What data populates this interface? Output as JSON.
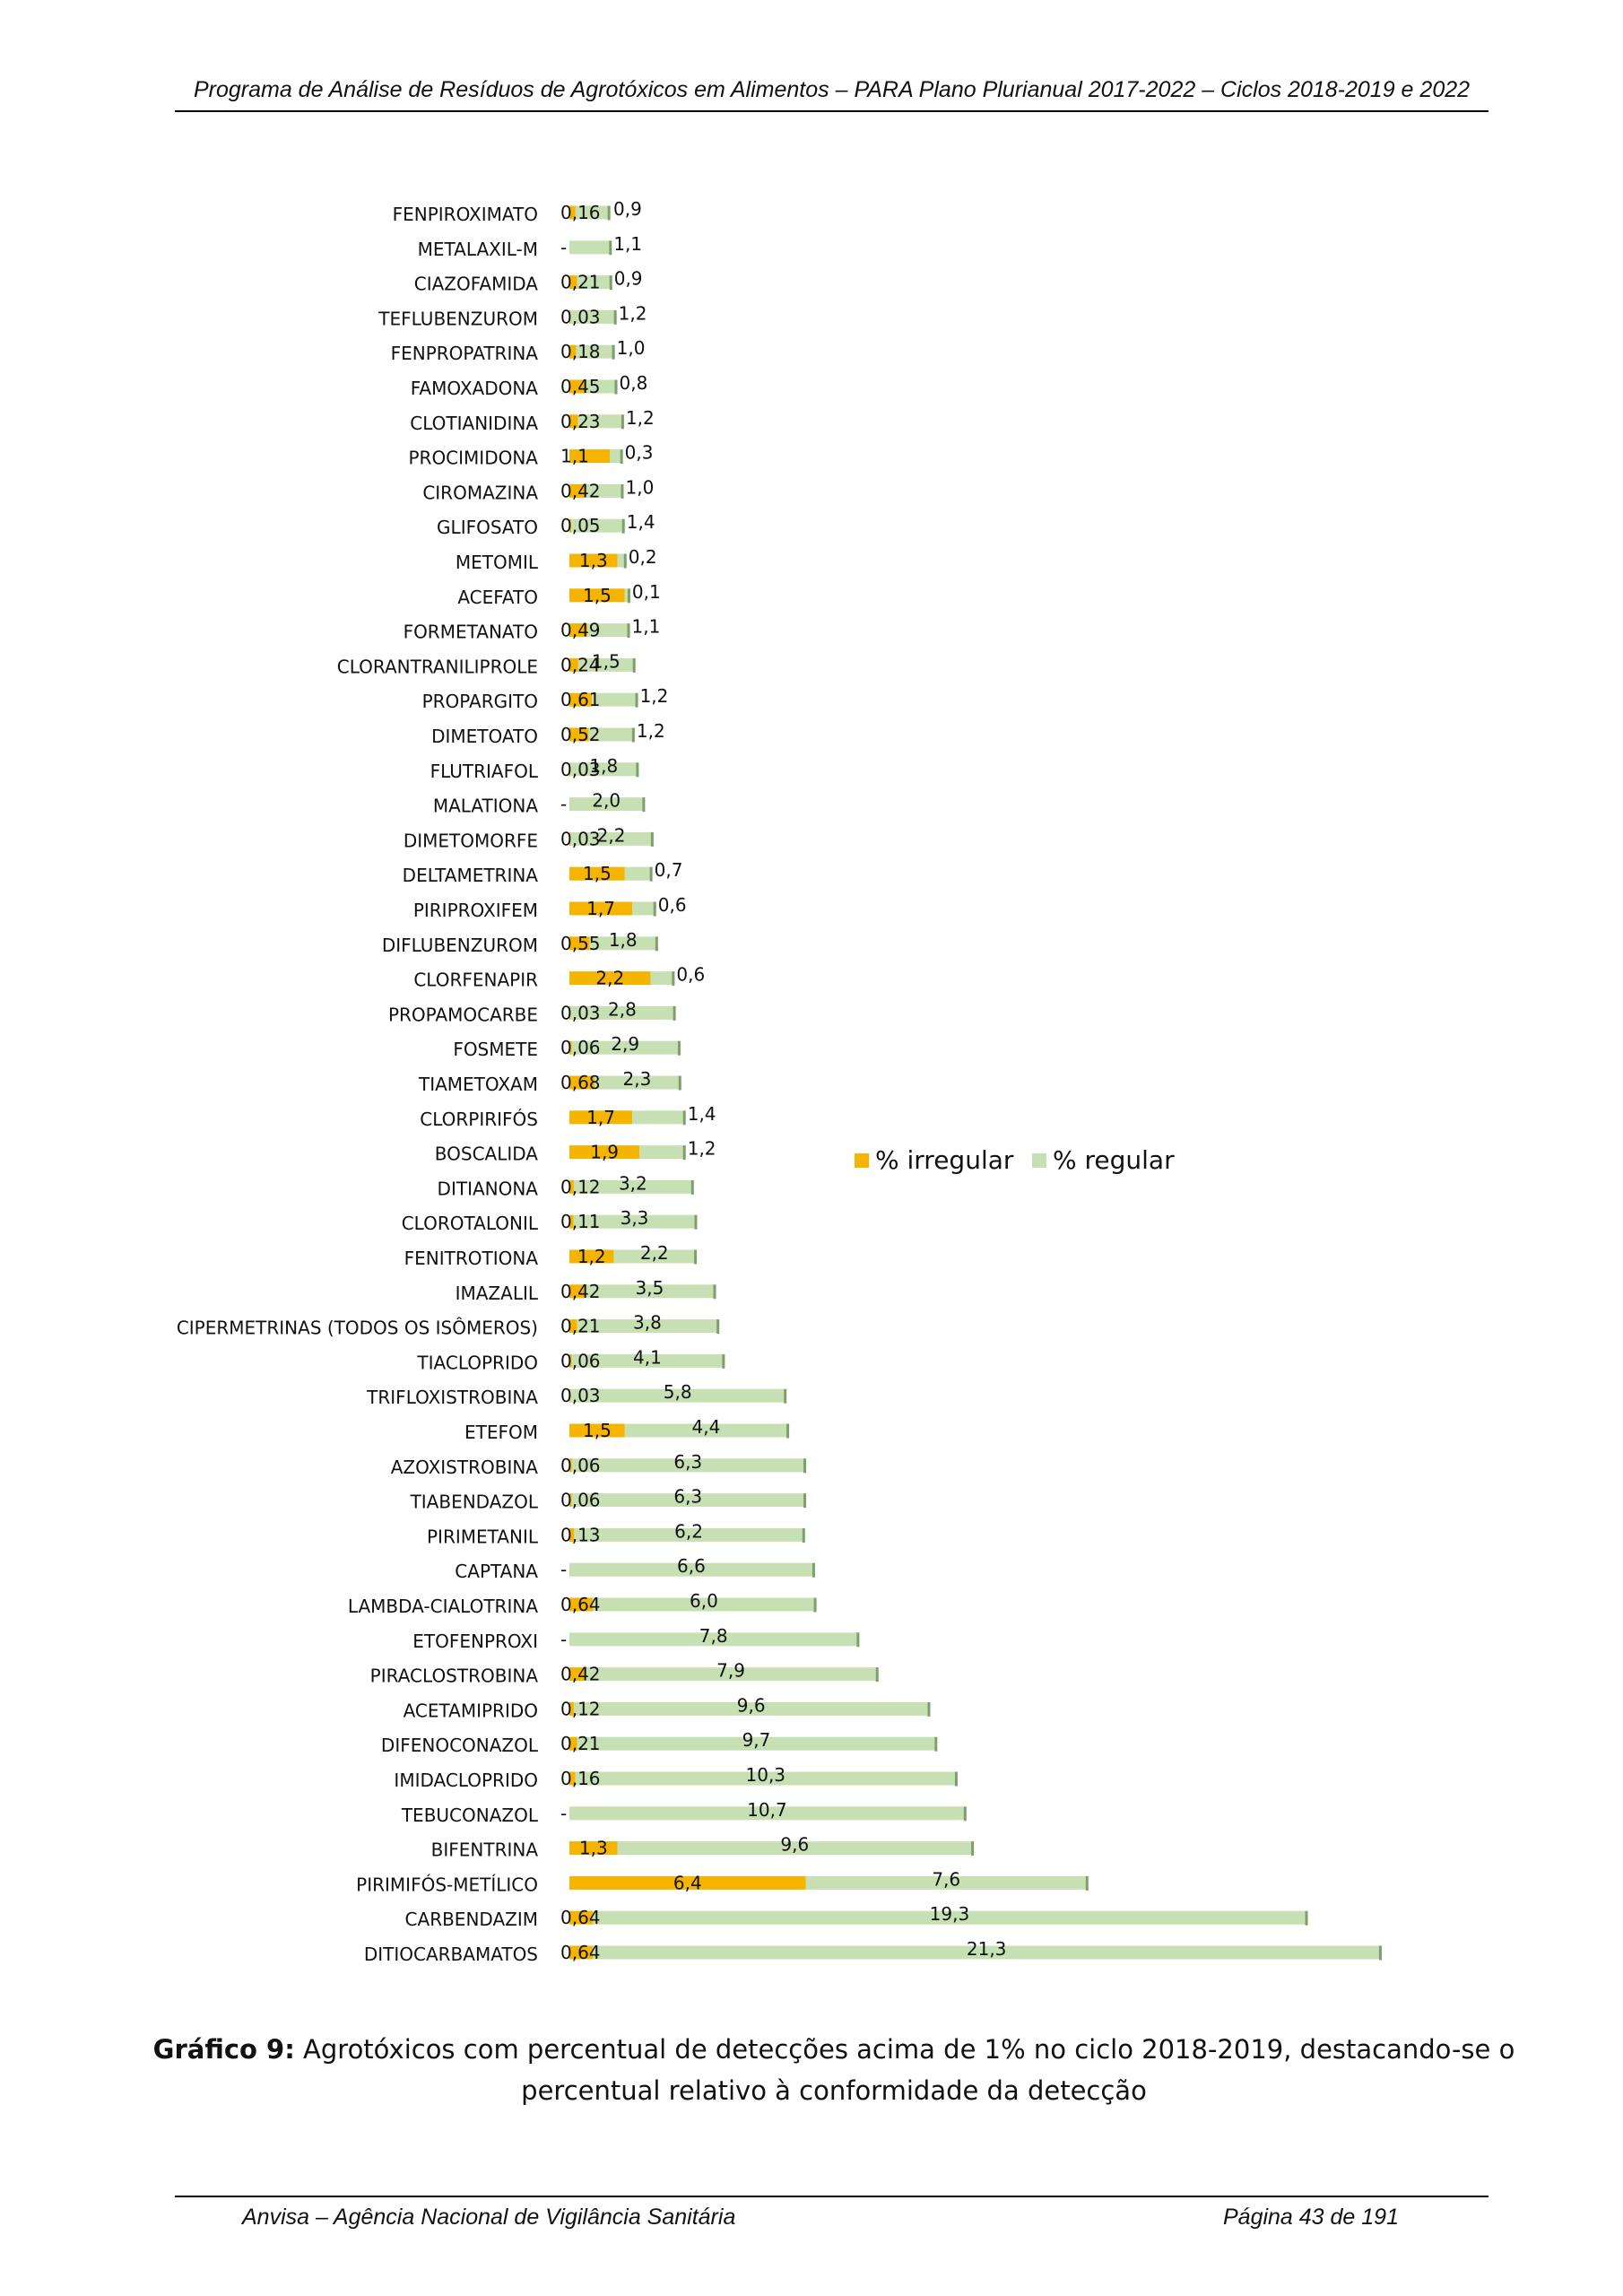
{
  "header": {
    "title": "Programa de Análise de Resíduos de Agrotóxicos em Alimentos – PARA   Plano Plurianual 2017-2022   –   Ciclos 2018-2019 e 2022"
  },
  "caption": {
    "label": "Gráfico 9:",
    "text": " Agrotóxicos com percentual de detecções acima de 1% no ciclo 2018-2019, destacando-se o percentual relativo à conformidade da detecção"
  },
  "footer": {
    "left": "Anvisa – Agência Nacional de Vigilância Sanitária",
    "right": "Página 43 de 191"
  },
  "chart_data": {
    "type": "bar",
    "orientation": "horizontal",
    "stacked": true,
    "legend_position": "right",
    "colors": {
      "irregular": "#f5b400",
      "regular": "#c6e0b4",
      "regular_edge": "#7f9f6a"
    },
    "categories": [
      "FENPIROXIMATO",
      "METALAXIL-M",
      "CIAZOFAMIDA",
      "TEFLUBENZUROM",
      "FENPROPATRINA",
      "FAMOXADONA",
      "CLOTIANIDINA",
      "PROCIMIDONA",
      "CIROMAZINA",
      "GLIFOSATO",
      "METOMIL",
      "ACEFATO",
      "FORMETANATO",
      "CLORANTRANILIPROLE",
      "PROPARGITO",
      "DIMETOATO",
      "FLUTRIAFOL",
      "MALATIONA",
      "DIMETOMORFE",
      "DELTAMETRINA",
      "PIRIPROXIFEM",
      "DIFLUBENZUROM",
      "CLORFENAPIR",
      "PROPAMOCARBE",
      "FOSMETE",
      "TIAMETOXAM",
      "CLORPIRIFÓS",
      "BOSCALIDA",
      "DITIANONA",
      "CLOROTALONIL",
      "FENITROTIONA",
      "IMAZALIL",
      "CIPERMETRINAS (TODOS OS ISÔMEROS)",
      "TIACLOPRIDO",
      "TRIFLOXISTROBINA",
      "ETEFOM",
      "AZOXISTROBINA",
      "TIABENDAZOL",
      "PIRIMETANIL",
      "CAPTANA",
      "LAMBDA-CIALOTRINA",
      "ETOFENPROXI",
      "PIRACLOSTROBINA",
      "ACETAMIPRIDO",
      "DIFENOCONAZOL",
      "IMIDACLOPRIDO",
      "TEBUCONAZOL",
      "BIFENTRINA",
      "PIRIMIFÓS-METÍLICO",
      "CARBENDAZIM",
      "DITIOCARBAMATOS"
    ],
    "series": [
      {
        "name": "% irregular",
        "key": "irregular",
        "values": [
          0.16,
          0,
          0.21,
          0.03,
          0.18,
          0.45,
          0.23,
          1.1,
          0.42,
          0.05,
          1.3,
          1.5,
          0.49,
          0.24,
          0.61,
          0.52,
          0.03,
          0,
          0.03,
          1.5,
          1.7,
          0.55,
          2.2,
          0.03,
          0.06,
          0.68,
          1.7,
          1.9,
          0.12,
          0.11,
          1.2,
          0.42,
          0.21,
          0.06,
          0.03,
          1.5,
          0.06,
          0.06,
          0.13,
          0,
          0.64,
          0,
          0.42,
          0.12,
          0.21,
          0.16,
          0,
          1.3,
          6.4,
          0.64,
          0.64
        ],
        "labels": [
          "0,16",
          "-",
          "0,21",
          "0,03",
          "0,18",
          "0,45",
          "0,23",
          "1,1",
          "0,42",
          "0,05",
          "1,3",
          "1,5",
          "0,49",
          "0,24",
          "0,61",
          "0,52",
          "0,03",
          "-",
          "0,03",
          "1,5",
          "1,7",
          "0,55",
          "2,2",
          "0,03",
          "0,06",
          "0,68",
          "1,7",
          "1,9",
          "0,12",
          "0,11",
          "1,2",
          "0,42",
          "0,21",
          "0,06",
          "0,03",
          "1,5",
          "0,06",
          "0,06",
          "0,13",
          "-",
          "0,64",
          "-",
          "0,42",
          "0,12",
          "0,21",
          "0,16",
          "-",
          "1,3",
          "6,4",
          "0,64",
          "0,64"
        ]
      },
      {
        "name": "% regular",
        "key": "regular",
        "values": [
          0.9,
          1.1,
          0.9,
          1.2,
          1.0,
          0.8,
          1.2,
          0.3,
          1.0,
          1.4,
          0.2,
          0.1,
          1.1,
          1.5,
          1.2,
          1.2,
          1.8,
          2.0,
          2.2,
          0.7,
          0.6,
          1.8,
          0.6,
          2.8,
          2.9,
          2.3,
          1.4,
          1.2,
          3.2,
          3.3,
          2.2,
          3.5,
          3.8,
          4.1,
          5.8,
          4.4,
          6.3,
          6.3,
          6.2,
          6.6,
          6.0,
          7.8,
          7.9,
          9.6,
          9.7,
          10.3,
          10.7,
          9.6,
          7.6,
          19.3,
          21.3
        ],
        "labels": [
          "0,9",
          "1,1",
          "0,9",
          "1,2",
          "1,0",
          "0,8",
          "1,2",
          "0,3",
          "1,0",
          "1,4",
          "0,2",
          "0,1",
          "1,1",
          "1,5",
          "1,2",
          "1,2",
          "1,8",
          "2,0",
          "2,2",
          "0,7",
          "0,6",
          "1,8",
          "0,6",
          "2,8",
          "2,9",
          "2,3",
          "1,4",
          "1,2",
          "3,2",
          "3,3",
          "2,2",
          "3,5",
          "3,8",
          "4,1",
          "5,8",
          "4,4",
          "6,3",
          "6,3",
          "6,2",
          "6,6",
          "6,0",
          "7,8",
          "7,9",
          "9,6",
          "9,7",
          "10,3",
          "10,7",
          "9,6",
          "7,6",
          "19,3",
          "21,3"
        ]
      }
    ]
  }
}
